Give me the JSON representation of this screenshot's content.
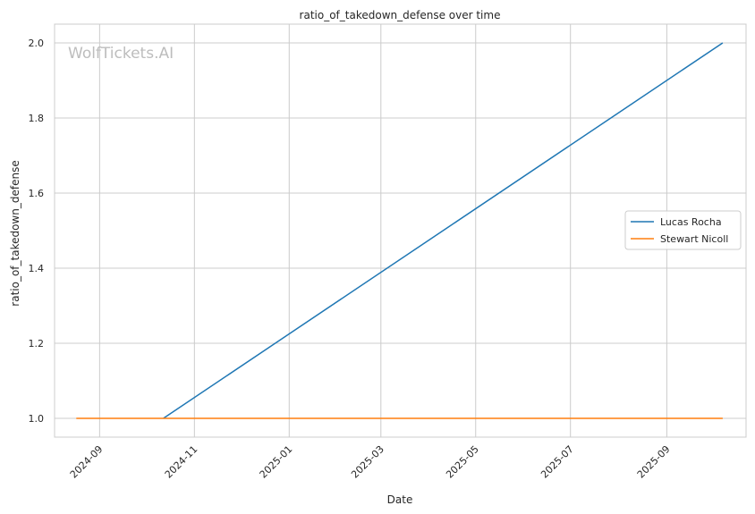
{
  "chart_data": {
    "type": "line",
    "title": "ratio_of_takedown_defense over time",
    "xlabel": "Date",
    "ylabel": "ratio_of_takedown_defense",
    "watermark": "WolfTickets.AI",
    "x_ticks": [
      "2024-09",
      "2024-11",
      "2025-01",
      "2025-03",
      "2025-05",
      "2025-07",
      "2025-09"
    ],
    "y_ticks": [
      "1.0",
      "1.2",
      "1.4",
      "1.6",
      "1.8",
      "2.0"
    ],
    "xlim": [
      "2024-08-03",
      "2025-10-22"
    ],
    "ylim": [
      0.95,
      2.05
    ],
    "grid": true,
    "legend_position": "center-right",
    "series": [
      {
        "name": "Lucas Rocha",
        "color": "#1f77b4",
        "points": [
          {
            "x": "2024-10-12",
            "y": 1.0
          },
          {
            "x": "2025-10-07",
            "y": 2.0
          }
        ]
      },
      {
        "name": "Stewart Nicoll",
        "color": "#ff7f0e",
        "points": [
          {
            "x": "2024-08-17",
            "y": 1.0
          },
          {
            "x": "2025-10-07",
            "y": 1.0
          }
        ]
      }
    ]
  }
}
